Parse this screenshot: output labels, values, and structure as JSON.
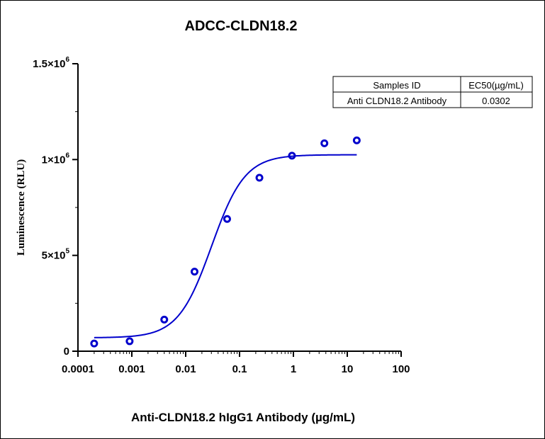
{
  "chart_data": {
    "type": "scatter",
    "title": "ADCC-CLDN18.2",
    "xlabel": "Anti-CLDN18.2 hIgG1 Antibody (µg/mL)",
    "ylabel": "Luminescence (RLU)",
    "x_scale": "log",
    "xlim": [
      0.0001,
      100
    ],
    "ylim": [
      0,
      1500000
    ],
    "x_ticks": [
      {
        "value": 0.0001,
        "label": "0.0001"
      },
      {
        "value": 0.001,
        "label": "0.001"
      },
      {
        "value": 0.01,
        "label": "0.01"
      },
      {
        "value": 0.1,
        "label": "0.1"
      },
      {
        "value": 1,
        "label": "1"
      },
      {
        "value": 10,
        "label": "10"
      },
      {
        "value": 100,
        "label": "100"
      }
    ],
    "y_ticks": [
      {
        "value": 0,
        "base": "0",
        "exp": ""
      },
      {
        "value": 500000,
        "base": "5×10",
        "exp": "5"
      },
      {
        "value": 1000000,
        "base": "1×10",
        "exp": "6"
      },
      {
        "value": 1500000,
        "base": "1.5×10",
        "exp": "6"
      }
    ],
    "grid": false,
    "series": [
      {
        "color": "#0000cc",
        "x": [
          0.0002,
          0.00091,
          0.004,
          0.0146,
          0.0588,
          0.234,
          0.94,
          3.76,
          15.0
        ],
        "y": [
          40000,
          52000,
          165000,
          415000,
          690000,
          905000,
          1020000,
          1085000,
          1100000
        ]
      }
    ],
    "fit_curve": {
      "type": "4PL",
      "color": "#0000cc",
      "bottom": 70000,
      "top": 1025000,
      "ec50": 0.0302,
      "hill": 1.4,
      "x_range": [
        0.0002,
        15.0
      ]
    },
    "table": {
      "headers": [
        "Samples ID",
        "EC50(µg/mL)"
      ],
      "rows": [
        [
          "Anti CLDN18.2 Antibody",
          "0.0302"
        ]
      ]
    }
  }
}
